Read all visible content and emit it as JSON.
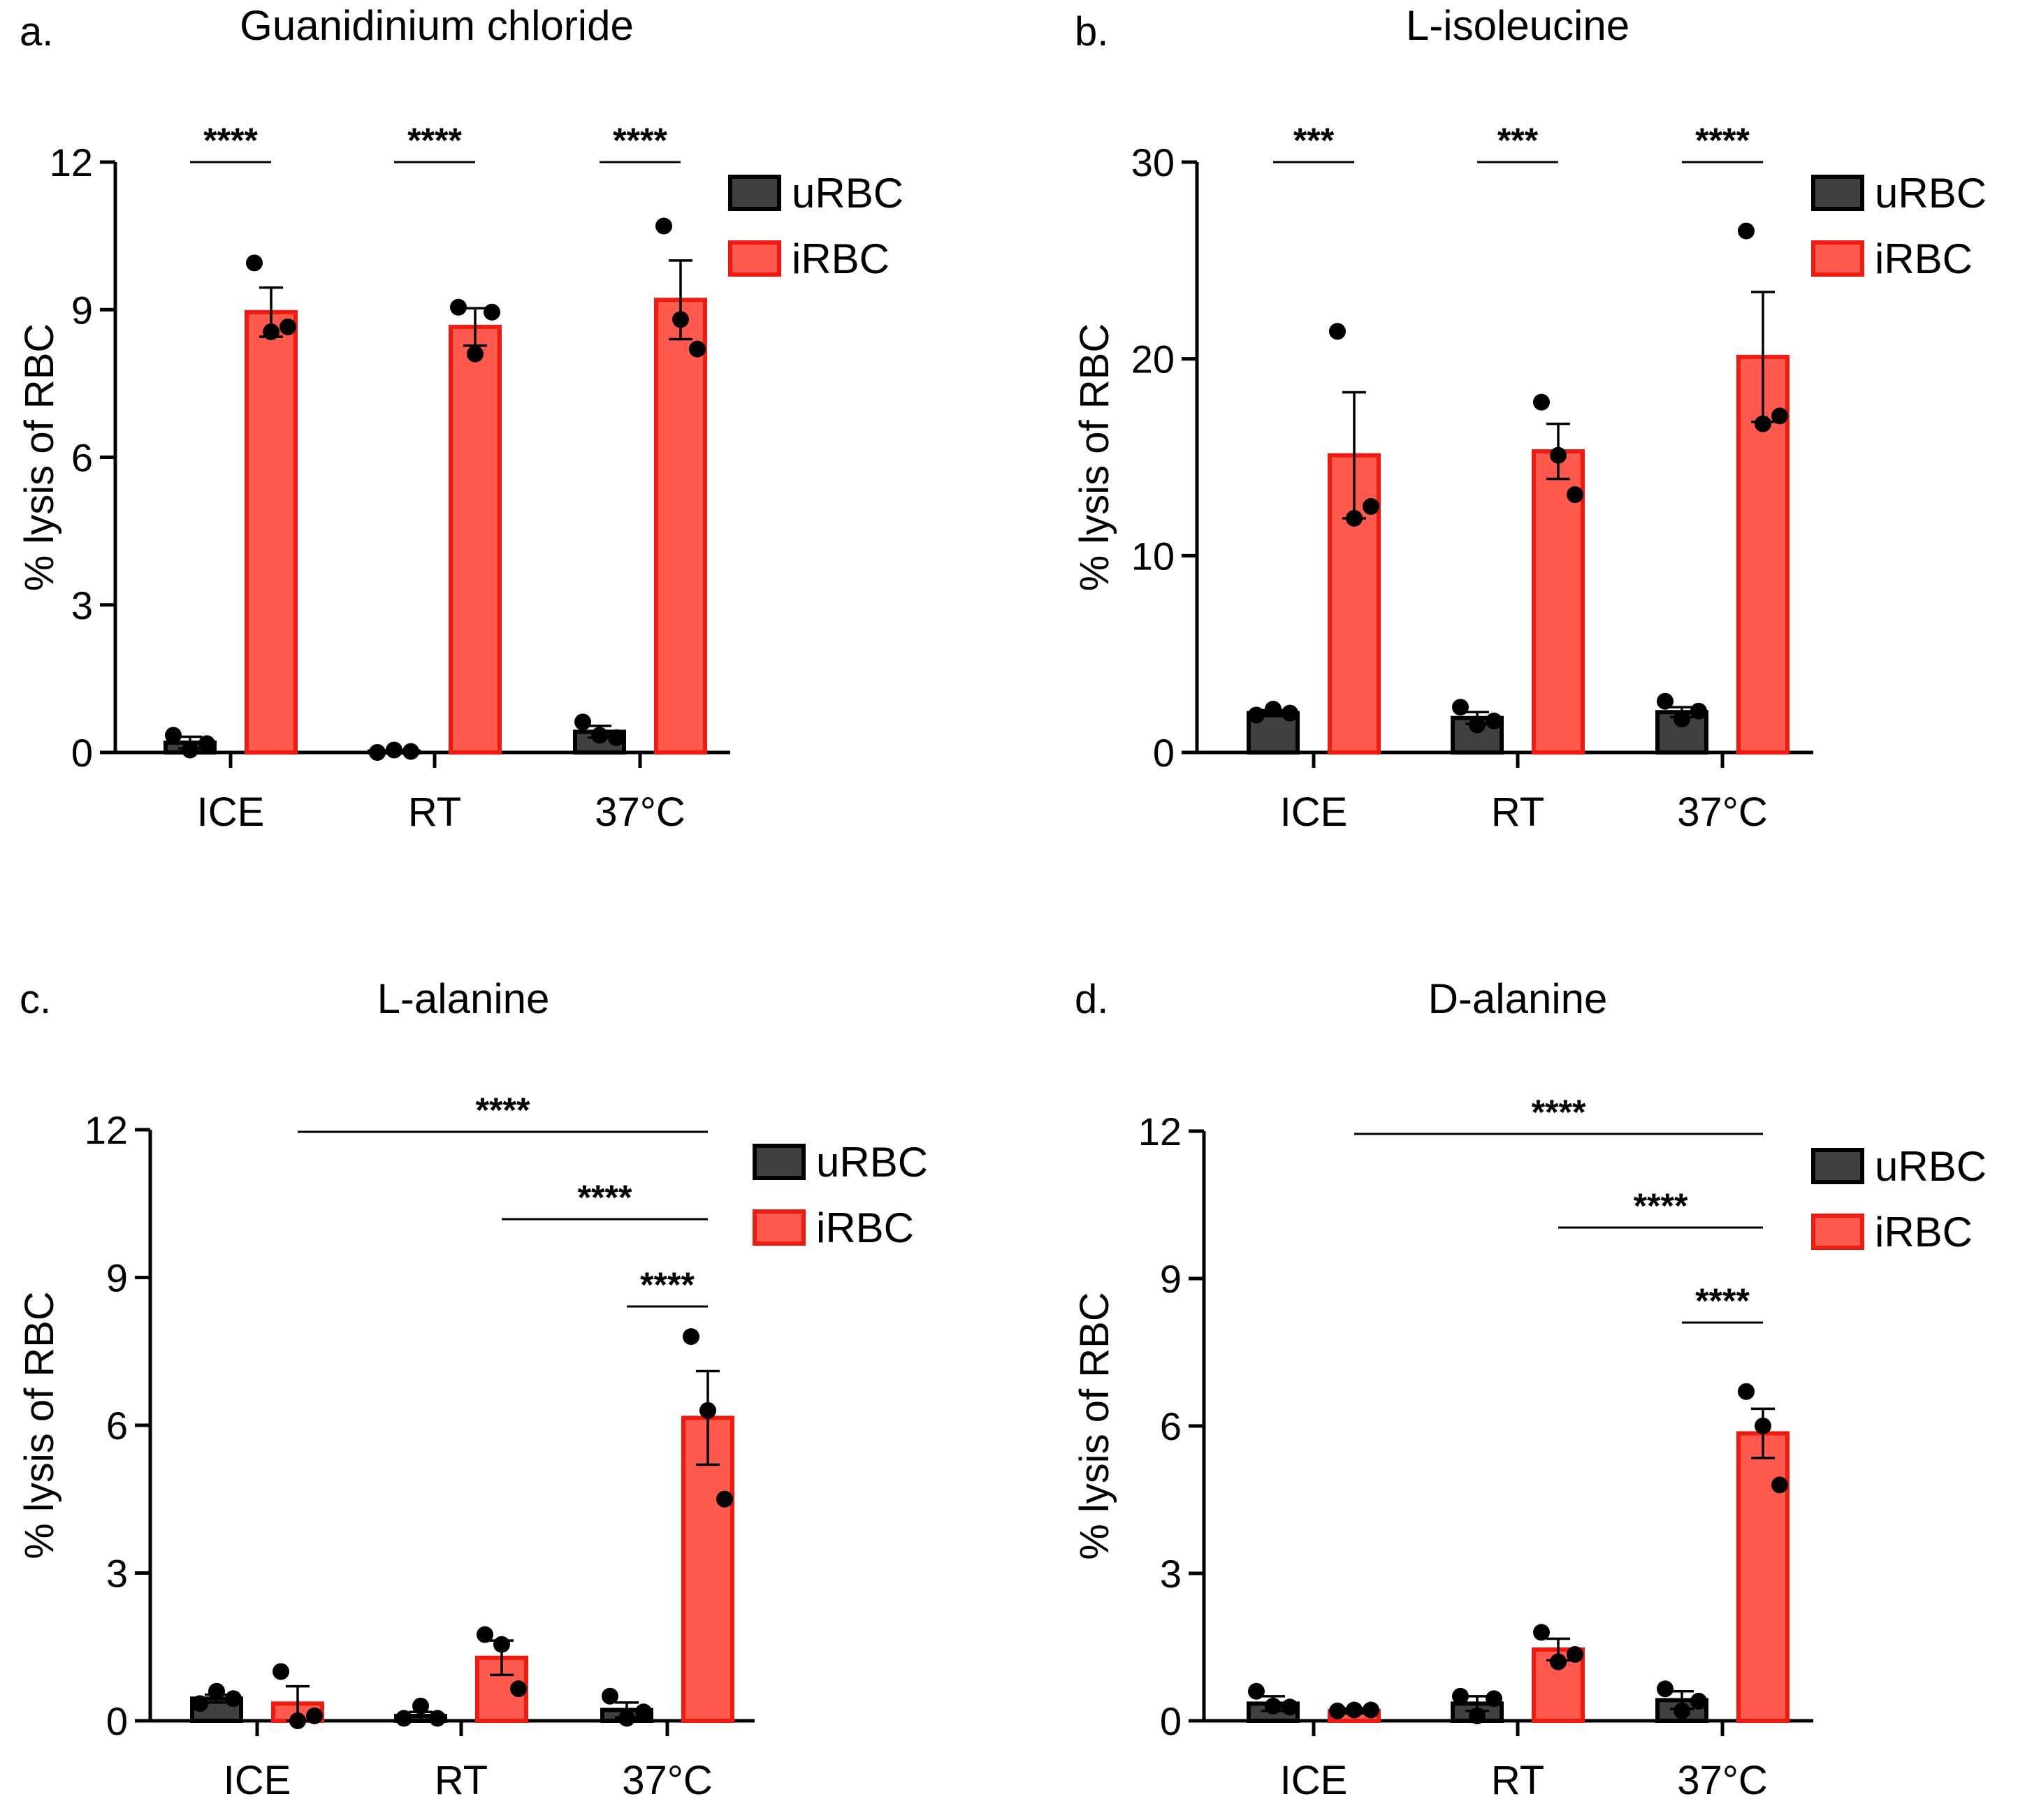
{
  "chart_data": [
    {
      "type": "bar",
      "panel_letter": "a.",
      "title": "Guanidinium chloride",
      "ylabel": "% lysis of RBC",
      "xlabel": "",
      "categories": [
        "ICE",
        "RT",
        "37°C"
      ],
      "ylim": [
        0,
        12
      ],
      "yticks": [
        "0",
        "3",
        "6",
        "9",
        "12"
      ],
      "legend": [
        "uRBC",
        "iRBC"
      ],
      "series": [
        {
          "name": "uRBC",
          "color": "#404040",
          "means": [
            0.2,
            0.02,
            0.42
          ],
          "sem": [
            0.12,
            0.02,
            0.12
          ],
          "points": [
            [
              0.35,
              0.05,
              0.18
            ],
            [
              0.0,
              0.05,
              0.02
            ],
            [
              0.62,
              0.35,
              0.3
            ]
          ]
        },
        {
          "name": "iRBC",
          "color": "#ff5a4d",
          "means": [
            8.95,
            8.65,
            9.2
          ],
          "sem": [
            0.5,
            0.38,
            0.8
          ],
          "points": [
            [
              9.95,
              8.55,
              8.65
            ],
            [
              9.05,
              8.1,
              8.95
            ],
            [
              10.7,
              8.8,
              8.2
            ]
          ]
        }
      ],
      "significance": [
        {
          "group": 0,
          "label": "****"
        },
        {
          "group": 1,
          "label": "****"
        },
        {
          "group": 2,
          "label": "****"
        }
      ]
    },
    {
      "type": "bar",
      "panel_letter": "b.",
      "title": "L-isoleucine",
      "ylabel": "% lysis of RBC",
      "xlabel": "",
      "categories": [
        "ICE",
        "RT",
        "37°C"
      ],
      "ylim": [
        0,
        30
      ],
      "yticks": [
        "0",
        "10",
        "20",
        "30"
      ],
      "legend": [
        "uRBC",
        "iRBC"
      ],
      "series": [
        {
          "name": "uRBC",
          "color": "#404040",
          "means": [
            2.0,
            1.75,
            2.05
          ],
          "sem": [
            0.15,
            0.3,
            0.25
          ],
          "points": [
            [
              1.9,
              2.2,
              2.0
            ],
            [
              2.3,
              1.4,
              1.6
            ],
            [
              2.6,
              1.7,
              2.1
            ]
          ]
        },
        {
          "name": "iRBC",
          "color": "#ff5a4d",
          "means": [
            15.1,
            15.3,
            20.1
          ],
          "sem": [
            3.2,
            1.4,
            3.3
          ],
          "points": [
            [
              21.4,
              11.9,
              12.5
            ],
            [
              17.8,
              15.1,
              13.1
            ],
            [
              26.5,
              16.7,
              17.1
            ]
          ]
        }
      ],
      "significance": [
        {
          "group": 0,
          "label": "***"
        },
        {
          "group": 1,
          "label": "***"
        },
        {
          "group": 2,
          "label": "****"
        }
      ]
    },
    {
      "type": "bar",
      "panel_letter": "c.",
      "title": "L-alanine",
      "ylabel": "% lysis of RBC",
      "xlabel": "",
      "categories": [
        "ICE",
        "RT",
        "37°C"
      ],
      "ylim": [
        0,
        12
      ],
      "yticks": [
        "0",
        "3",
        "6",
        "9",
        "12"
      ],
      "legend": [
        "uRBC",
        "iRBC"
      ],
      "series": [
        {
          "name": "uRBC",
          "color": "#404040",
          "means": [
            0.45,
            0.1,
            0.22
          ],
          "sem": [
            0.08,
            0.08,
            0.15
          ],
          "points": [
            [
              0.35,
              0.6,
              0.45
            ],
            [
              0.05,
              0.3,
              0.05
            ],
            [
              0.5,
              0.05,
              0.18
            ]
          ]
        },
        {
          "name": "iRBC",
          "color": "#ff5a4d",
          "means": [
            0.35,
            1.28,
            6.15
          ],
          "sem": [
            0.35,
            0.35,
            0.95
          ],
          "points": [
            [
              1.0,
              0.0,
              0.1
            ],
            [
              1.75,
              1.55,
              0.65
            ],
            [
              7.8,
              6.3,
              4.5
            ]
          ]
        }
      ],
      "significance": [
        {
          "from_group": 0,
          "to_group": 2,
          "label": "****"
        },
        {
          "from_group": 1,
          "to_group": 2,
          "label": "****"
        },
        {
          "from_group": 2,
          "to_group": 2,
          "label": "****"
        }
      ]
    },
    {
      "type": "bar",
      "panel_letter": "d.",
      "title": "D-alanine",
      "ylabel": "% lysis of RBC",
      "xlabel": "",
      "categories": [
        "ICE",
        "RT",
        "37°C"
      ],
      "ylim": [
        0,
        12
      ],
      "yticks": [
        "0",
        "3",
        "6",
        "9",
        "12"
      ],
      "legend": [
        "uRBC",
        "iRBC"
      ],
      "series": [
        {
          "name": "uRBC",
          "color": "#404040",
          "means": [
            0.35,
            0.35,
            0.42
          ],
          "sem": [
            0.15,
            0.15,
            0.18
          ],
          "points": [
            [
              0.6,
              0.3,
              0.28
            ],
            [
              0.5,
              0.1,
              0.45
            ],
            [
              0.65,
              0.2,
              0.4
            ]
          ]
        },
        {
          "name": "iRBC",
          "color": "#ff5a4d",
          "means": [
            0.2,
            1.45,
            5.85
          ],
          "sem": [
            0.05,
            0.22,
            0.5
          ],
          "points": [
            [
              0.2,
              0.22,
              0.22
            ],
            [
              1.8,
              1.2,
              1.35
            ],
            [
              6.7,
              6.0,
              4.8
            ]
          ]
        }
      ],
      "significance": [
        {
          "from_group": 0,
          "to_group": 2,
          "label": "****"
        },
        {
          "from_group": 1,
          "to_group": 2,
          "label": "****"
        },
        {
          "from_group": 2,
          "to_group": 2,
          "label": "****"
        }
      ]
    }
  ]
}
